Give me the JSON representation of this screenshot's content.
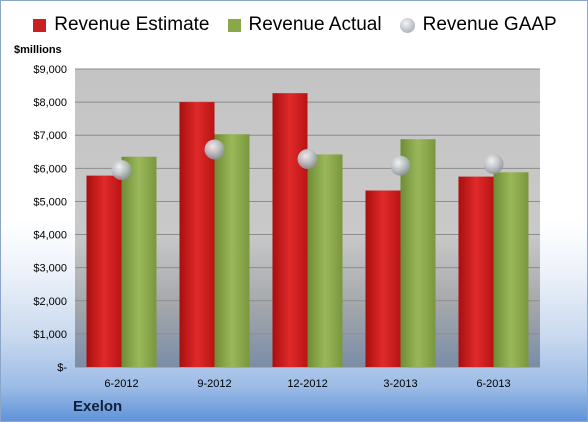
{
  "chart_data": {
    "type": "bar",
    "units_label": "$millions",
    "company": "Exelon",
    "categories": [
      "6-2012",
      "9-2012",
      "12-2012",
      "3-2013",
      "6-2013"
    ],
    "series": [
      {
        "name": "Revenue Estimate",
        "type": "bar",
        "color": "#cc1f1f",
        "values": [
          5780,
          8000,
          8270,
          5330,
          5750
        ]
      },
      {
        "name": "Revenue Actual",
        "type": "bar",
        "color": "#8aa84a",
        "values": [
          6350,
          7030,
          6420,
          6880,
          5880
        ]
      },
      {
        "name": "Revenue GAAP",
        "type": "marker",
        "color": "#b5b9c0",
        "values": [
          5950,
          6570,
          6280,
          6080,
          6130
        ]
      }
    ],
    "yticks": [
      "$-",
      "$1,000",
      "$2,000",
      "$3,000",
      "$4,000",
      "$5,000",
      "$6,000",
      "$7,000",
      "$8,000",
      "$9,000"
    ],
    "ylim": [
      0,
      9000
    ],
    "grid": true,
    "legend_position": "top"
  }
}
